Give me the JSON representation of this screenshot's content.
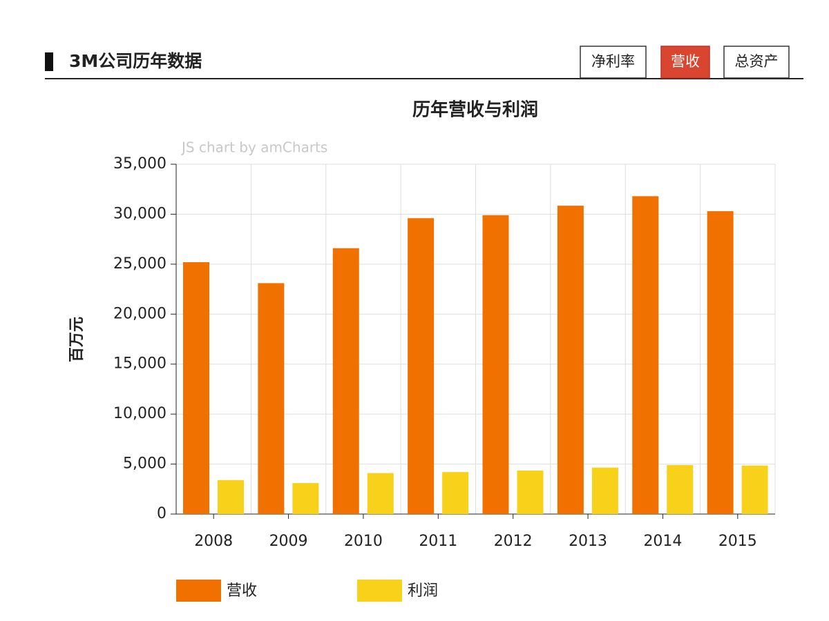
{
  "header": {
    "title": "3M公司历年数据",
    "tabs": [
      "净利率",
      "营收",
      "总资产"
    ],
    "active_tab": "营收"
  },
  "chart_data": {
    "type": "bar",
    "title": "历年营收与利润",
    "watermark": "JS chart by amCharts",
    "y_label": "百万元",
    "categories": [
      "2008",
      "2009",
      "2010",
      "2011",
      "2012",
      "2013",
      "2014",
      "2015"
    ],
    "series": [
      {
        "name": "营收",
        "color": "#f07000",
        "values": [
          25200,
          23100,
          26600,
          29600,
          29900,
          30850,
          31800,
          30300
        ]
      },
      {
        "name": "利润",
        "color": "#f8d21a",
        "values": [
          3400,
          3100,
          4100,
          4200,
          4350,
          4650,
          4900,
          4850
        ]
      }
    ],
    "ylim": [
      0,
      35000
    ],
    "yticks": [
      0,
      {
        "value": 5000,
        "label": "5,000"
      },
      {
        "value": 10000,
        "label": "10,000"
      },
      {
        "value": 15000,
        "label": "15,000"
      },
      {
        "value": 20000,
        "label": "20,000"
      },
      {
        "value": 25000,
        "label": "25,000"
      },
      {
        "value": 30000,
        "label": "30,000"
      },
      {
        "value": 35000,
        "label": "35,000"
      }
    ],
    "grid": true
  }
}
